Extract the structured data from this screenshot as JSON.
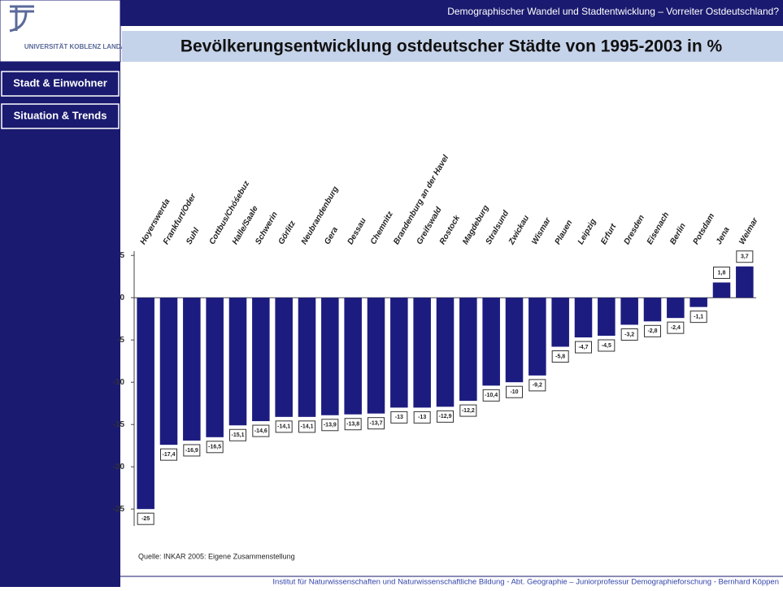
{
  "header": {
    "text": "Demographischer Wandel und Stadtentwicklung – Vorreiter Ostdeutschland?",
    "logo": "UNIVERSITÄT KOBLENZ LANDAU"
  },
  "nav": [
    "Stadt & Einwohner",
    "Situation & Trends"
  ],
  "source": "Quelle: INKAR 2005: Eigene Zusammenstellung",
  "footer": "Institut für Naturwissenschaften und Naturwissenschaftliche Bildung - Abt. Geographie – Juniorprofessur Demographieforschung - Bernhard Köppen",
  "chart_data": {
    "type": "bar",
    "title": "Bevölkerungsentwicklung ostdeutscher Städte von 1995-2003 in %",
    "categories": [
      "Hoyerswerda",
      "Frankfurt/Oder",
      "Suhl",
      "Cottbus/Chóśebuz",
      "Halle/Saale",
      "Schwerin",
      "Görlitz",
      "Neubrandenburg",
      "Gera",
      "Dessau",
      "Chemnitz",
      "Brandenburg an der Havel",
      "Greifswald",
      "Rostock",
      "Magdeburg",
      "Stralsund",
      "Zwickau",
      "Wismar",
      "Plauen",
      "Leipzig",
      "Erfurt",
      "Dresden",
      "Eisenach",
      "Berlin",
      "Potsdam",
      "Jena",
      "Weimar"
    ],
    "values": [
      -25,
      -17.4,
      -16.9,
      -16.5,
      -15.1,
      -14.6,
      -14.1,
      -14.1,
      -13.9,
      -13.8,
      -13.7,
      -13,
      -13,
      -12.9,
      -12.2,
      -10.4,
      -10,
      -9.2,
      -5.8,
      -4.7,
      -4.5,
      -3.2,
      -2.8,
      -2.4,
      -1.1,
      1.8,
      3.7
    ],
    "value_labels": [
      "-25",
      "-17,4",
      "-16,9",
      "-16,5",
      "-15,1",
      "-14,6",
      "-14,1",
      "-14,1",
      "-13,9",
      "-13,8",
      "-13,7",
      "-13",
      "-13",
      "-12,9",
      "-12,2",
      "-10,4",
      "-10",
      "-9,2",
      "-5,8",
      "-4,7",
      "-4,5",
      "-3,2",
      "-2,8",
      "-2,4",
      "-1,1",
      "1,8",
      "3,7"
    ],
    "color": "#1c1c80",
    "ylim": [
      -27,
      5.5
    ],
    "yticks": [
      5,
      0,
      -5,
      -10,
      -15,
      -20,
      -25
    ]
  }
}
